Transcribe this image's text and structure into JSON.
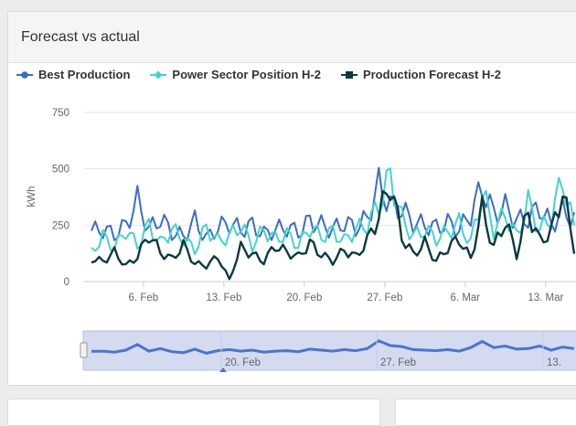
{
  "panel": {
    "title": "Forecast vs actual"
  },
  "legend": [
    {
      "label": "Best Production",
      "color": "#3d6cc7",
      "marker": "circle"
    },
    {
      "label": "Power Sector Position H-2",
      "color": "#45d3cf",
      "marker": "diamond"
    },
    {
      "label": "Production Forecast H-2",
      "color": "#0c3a3e",
      "marker": "square"
    }
  ],
  "chart_data": {
    "type": "line",
    "ylabel": "kWh",
    "yticks": [
      0,
      250,
      500,
      750
    ],
    "ylim": [
      0,
      750
    ],
    "xticks": [
      "6. Feb",
      "13. Feb",
      "20. Feb",
      "27. Feb",
      "6. Mar",
      "13. Mar"
    ],
    "x": [
      "1. Feb",
      "2. Feb",
      "3. Feb",
      "4. Feb",
      "5. Feb",
      "6. Feb",
      "7. Feb",
      "8. Feb",
      "9. Feb",
      "10. Feb",
      "11. Feb",
      "12. Feb",
      "13. Feb",
      "14. Feb",
      "15. Feb",
      "16. Feb",
      "17. Feb",
      "18. Feb",
      "19. Feb",
      "20. Feb",
      "21. Feb",
      "22. Feb",
      "23. Feb",
      "24. Feb",
      "25. Feb",
      "26. Feb",
      "27. Feb",
      "28. Feb",
      "1. Mar",
      "2. Mar",
      "3. Mar",
      "4. Mar",
      "5. Mar",
      "6. Mar",
      "7. Mar",
      "8. Mar",
      "9. Mar",
      "10. Mar",
      "11. Mar",
      "12. Mar",
      "13. Mar",
      "14. Mar",
      "15. Mar"
    ],
    "series": [
      {
        "name": "Best Production",
        "color": "#3d6cc7",
        "values": [
          225,
          230,
          210,
          250,
          360,
          230,
          280,
          220,
          200,
          270,
          190,
          240,
          260,
          230,
          250,
          210,
          230,
          240,
          220,
          270,
          250,
          230,
          260,
          240,
          280,
          430,
          340,
          320,
          260,
          250,
          240,
          260,
          230,
          300,
          420,
          300,
          330,
          270,
          280,
          330,
          250,
          310,
          280
        ]
      },
      {
        "name": "Power Sector Position H-2",
        "color": "#45d3cf",
        "values": [
          130,
          200,
          150,
          230,
          160,
          250,
          170,
          230,
          190,
          140,
          240,
          180,
          200,
          250,
          160,
          230,
          190,
          210,
          160,
          240,
          200,
          220,
          180,
          230,
          250,
          340,
          470,
          280,
          200,
          230,
          190,
          220,
          260,
          170,
          400,
          230,
          300,
          200,
          350,
          230,
          280,
          460,
          230
        ]
      },
      {
        "name": "Production Forecast H-2",
        "color": "#0c3a3e",
        "values": [
          100,
          90,
          130,
          70,
          110,
          210,
          130,
          100,
          160,
          80,
          70,
          110,
          10,
          150,
          120,
          90,
          160,
          130,
          110,
          170,
          120,
          90,
          140,
          110,
          180,
          290,
          440,
          200,
          120,
          170,
          90,
          150,
          190,
          100,
          320,
          150,
          270,
          120,
          310,
          180,
          220,
          400,
          150
        ]
      }
    ],
    "navigator_labels": [
      "20. Feb",
      "27. Feb",
      "13."
    ]
  }
}
